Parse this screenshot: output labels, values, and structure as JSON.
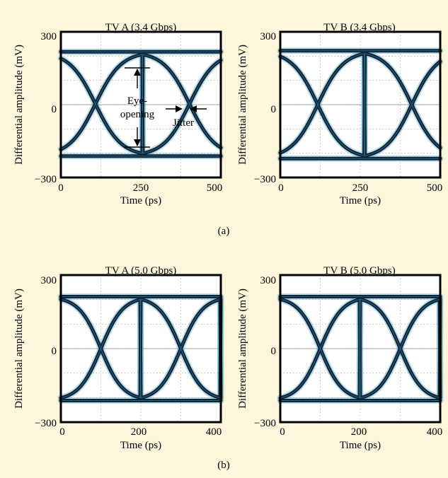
{
  "figure": {
    "caption_a": "(a)",
    "caption_b": "(b)"
  },
  "annotations": {
    "eye_opening_line1": "Eye-",
    "eye_opening_line2": "opening",
    "jitter": "Jitter"
  },
  "colors": {
    "background": "#fdf6dc",
    "plot_background": "#ffffff",
    "trace": "#10243a",
    "trace_halo": "#3f9fb8",
    "trace_noise": "#6a3fc0",
    "frame": "#000000",
    "grid": "#9a9a9a"
  },
  "chart_data": [
    {
      "type": "line",
      "title": "TV A (3.4 Gbps)",
      "xlabel": "Time (ps)",
      "ylabel": "Differential amplitude (mV)",
      "xlim": [
        0,
        500
      ],
      "ylim": [
        -300,
        300
      ],
      "xticks": [
        "0",
        "250",
        "500"
      ],
      "yticks": [
        "300",
        "0",
        "−300"
      ],
      "grid": true,
      "eye_period_ps": 294,
      "crossings_ps": [
        108,
        402
      ],
      "levels_mv": [
        218,
        -212
      ],
      "eye_opening_mv": [
        172,
        -165
      ],
      "crossing_mv": 0
    },
    {
      "type": "line",
      "title": "TV B (3.4 Gbps)",
      "xlabel": "Time (ps)",
      "ylabel": "Differential amplitude (mV)",
      "xlim": [
        0,
        500
      ],
      "ylim": [
        -300,
        300
      ],
      "xticks": [
        "0",
        "250",
        "500"
      ],
      "yticks": [
        "300",
        "0",
        "−300"
      ],
      "grid": true,
      "eye_period_ps": 294,
      "crossings_ps": [
        117,
        411
      ],
      "levels_mv": [
        222,
        -222
      ],
      "crossing_mv": 0
    },
    {
      "type": "line",
      "title": "TV A (5.0 Gbps)",
      "xlabel": "Time (ps)",
      "ylabel": "Differential amplitude (mV)",
      "xlim": [
        0,
        400
      ],
      "ylim": [
        -300,
        300
      ],
      "xticks": [
        "0",
        "200",
        "400"
      ],
      "yticks": [
        "300",
        "0",
        "−300"
      ],
      "grid": true,
      "eye_period_ps": 200,
      "crossings_ps": [
        100,
        300
      ],
      "levels_mv": [
        212,
        -212
      ],
      "crossing_mv": 0
    },
    {
      "type": "line",
      "title": "TV B (5.0 Gbps)",
      "xlabel": "Time (ps)",
      "ylabel": "Differential amplitude (mV)",
      "xlim": [
        0,
        400
      ],
      "ylim": [
        -300,
        300
      ],
      "xticks": [
        "0",
        "200",
        "400"
      ],
      "yticks": [
        "300",
        "0",
        "−300"
      ],
      "grid": true,
      "eye_period_ps": 200,
      "crossings_ps": [
        100,
        300
      ],
      "levels_mv": [
        212,
        -212
      ],
      "crossing_mv": 0
    }
  ]
}
